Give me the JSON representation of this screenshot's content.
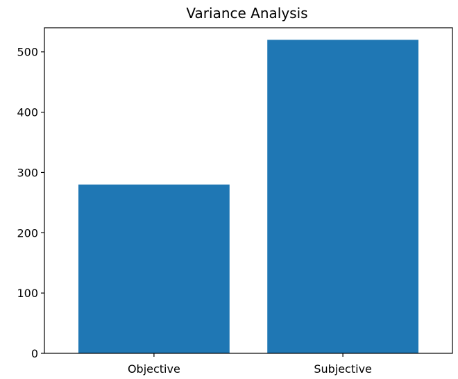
{
  "chart_data": {
    "type": "bar",
    "title": "Variance Analysis",
    "xlabel": "",
    "ylabel": "",
    "categories": [
      "Objective",
      "Subjective"
    ],
    "values": [
      280,
      520
    ],
    "ylim": [
      0,
      540
    ],
    "yticks": [
      0,
      100,
      200,
      300,
      400,
      500
    ],
    "bar_color": "#1f77b4",
    "grid": false,
    "legend": "none"
  }
}
